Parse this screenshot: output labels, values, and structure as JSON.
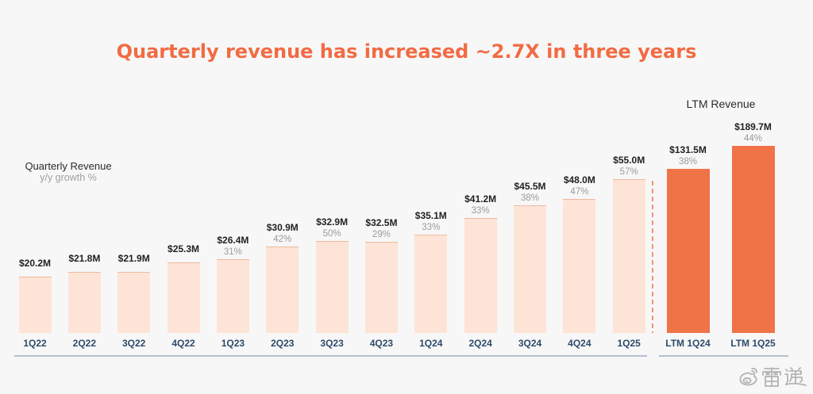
{
  "header": {
    "title": "Quarterly revenue has increased ~2.7X in three years"
  },
  "colors": {
    "background": "#F7F7F7",
    "title": "#F26B43",
    "quarterly_bar": "#FDE4D6",
    "ltm_bar": "#F07347",
    "value_text": "#222222",
    "growth_text": "#9B9B9B",
    "category_text": "#2E4A69",
    "axis_line": "#B4C2CF",
    "divider": "#F29274"
  },
  "chart_data": [
    {
      "type": "bar",
      "legend": {
        "position": "top-left",
        "growth_label": "y/y growth %"
      },
      "categories": [
        "1Q22",
        "2Q22",
        "3Q22",
        "4Q22",
        "1Q23",
        "2Q23",
        "3Q23",
        "4Q23",
        "1Q24",
        "2Q24",
        "3Q24",
        "4Q24",
        "1Q25"
      ],
      "series": [
        {
          "name": "Quarterly Revenue",
          "values": [
            20.2,
            21.8,
            21.9,
            25.3,
            26.4,
            30.9,
            32.9,
            32.5,
            35.1,
            41.2,
            45.5,
            48.0,
            55.0
          ],
          "value_labels": [
            "$20.2M",
            "$21.8M",
            "$21.9M",
            "$25.3M",
            "$26.4M",
            "$30.9M",
            "$32.9M",
            "$32.5M",
            "$35.1M",
            "$41.2M",
            "$45.5M",
            "$48.0M",
            "$55.0M"
          ],
          "growth_labels": [
            null,
            null,
            null,
            null,
            "31%",
            "42%",
            "50%",
            "29%",
            "33%",
            "33%",
            "38%",
            "47%",
            "57%"
          ]
        }
      ],
      "grid": false
    },
    {
      "type": "bar",
      "title": "LTM Revenue",
      "categories": [
        "LTM 1Q24",
        "LTM 1Q25"
      ],
      "series": [
        {
          "values": [
            131.5,
            189.7
          ],
          "value_labels": [
            "$131.5M",
            "$189.7M"
          ],
          "growth_labels": [
            "38%",
            "44%"
          ]
        }
      ],
      "grid": false
    }
  ],
  "watermark": {
    "text": "雷递",
    "icon": "weibo-icon"
  }
}
